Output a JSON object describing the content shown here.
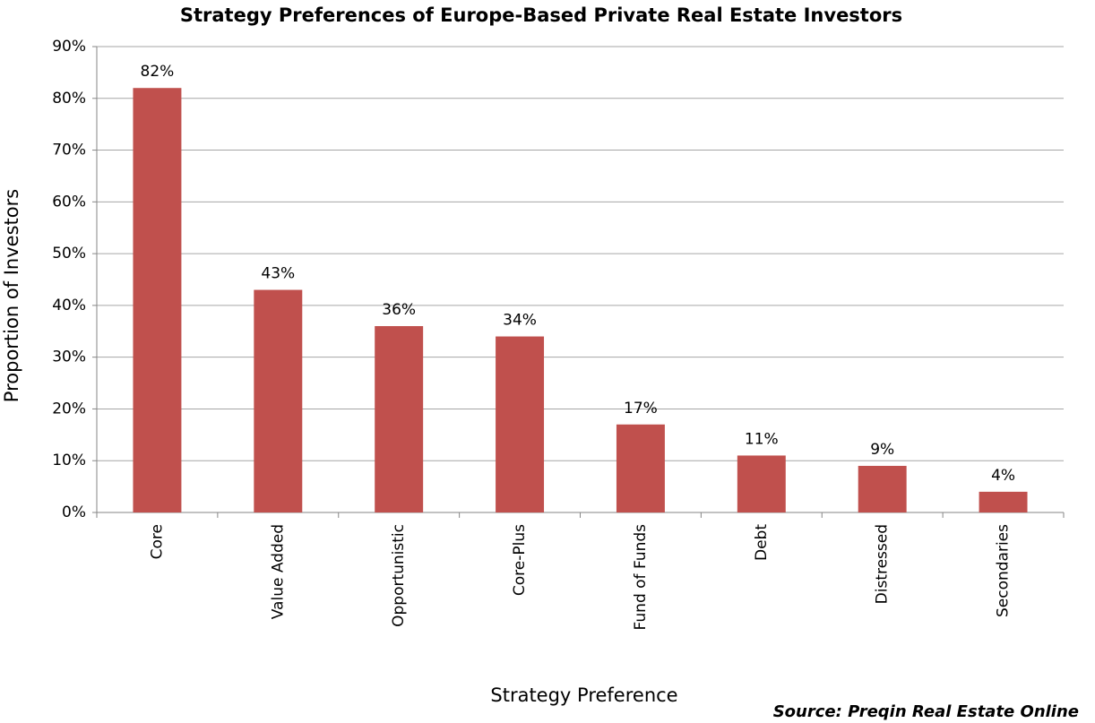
{
  "chart_data": {
    "type": "bar",
    "title": "Strategy Preferences of Europe-Based Private Real Estate Investors",
    "x_label": "Strategy Preference",
    "y_label": "Proportion of Investors",
    "source": "Source: Preqin Real Estate Online",
    "categories": [
      "Core",
      "Value Added",
      "Opportunistic",
      "Core-Plus",
      "Fund of Funds",
      "Debt",
      "Distressed",
      "Secondaries"
    ],
    "values": [
      82,
      43,
      36,
      34,
      17,
      11,
      9,
      4
    ],
    "value_labels": [
      "82%",
      "43%",
      "36%",
      "34%",
      "17%",
      "11%",
      "9%",
      "4%"
    ],
    "color": "#c0504d",
    "ylim": [
      0,
      90
    ],
    "yticks": [
      {
        "value": 0,
        "label": "0%"
      },
      {
        "value": 10,
        "label": "10%"
      },
      {
        "value": 20,
        "label": "20%"
      },
      {
        "value": 30,
        "label": "30%"
      },
      {
        "value": 40,
        "label": "40%"
      },
      {
        "value": 50,
        "label": "50%"
      },
      {
        "value": 60,
        "label": "60%"
      },
      {
        "value": 70,
        "label": "70%"
      },
      {
        "value": 80,
        "label": "80%"
      },
      {
        "value": 90,
        "label": "90%"
      }
    ],
    "grid": true
  }
}
